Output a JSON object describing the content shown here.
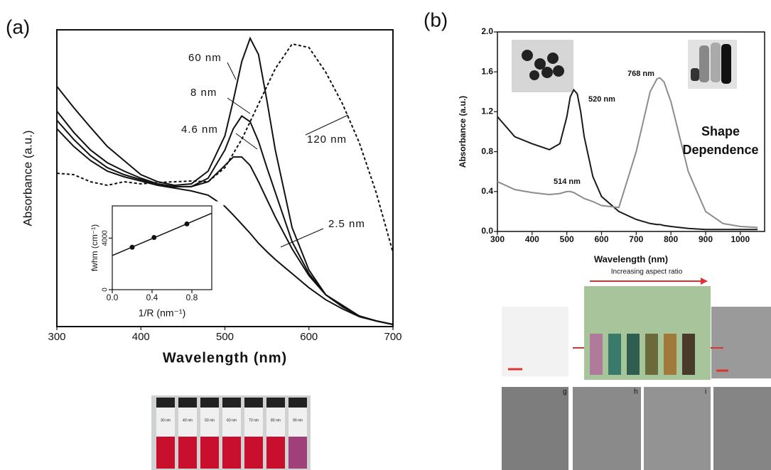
{
  "panel_labels": [
    "(a)",
    "(b)"
  ],
  "chart_data": [
    {
      "type": "line",
      "xlabel": "Wavelength (nm)",
      "ylabel": "Absorbance (a.u.)",
      "x": [
        300,
        320,
        340,
        360,
        380,
        400,
        420,
        440,
        460,
        480,
        500,
        510,
        520,
        530,
        540,
        550,
        560,
        580,
        600,
        620,
        640,
        660,
        680,
        700
      ],
      "xlim": [
        300,
        700
      ],
      "xticks": [
        300,
        400,
        500,
        600,
        700
      ],
      "ylim": [
        0,
        420
      ],
      "series": [
        {
          "name": "60 nm",
          "color": "#111111",
          "values": [
            340,
            310,
            282,
            255,
            235,
            215,
            205,
            200,
            202,
            220,
            270,
            320,
            375,
            408,
            385,
            320,
            250,
            140,
            80,
            45,
            30,
            15,
            8,
            3
          ]
        },
        {
          "name": "8 nm",
          "color": "#111111",
          "values": [
            305,
            275,
            250,
            232,
            220,
            210,
            202,
            198,
            198,
            210,
            250,
            280,
            298,
            290,
            262,
            225,
            190,
            120,
            75,
            45,
            28,
            15,
            8,
            3
          ]
        },
        {
          "name": "4.6 nm",
          "color": "#111111",
          "values": [
            292,
            265,
            242,
            225,
            215,
            208,
            202,
            198,
            198,
            205,
            228,
            240,
            240,
            228,
            205,
            180,
            155,
            110,
            72,
            45,
            28,
            15,
            8,
            3
          ]
        },
        {
          "name": "2.5 nm",
          "color": "#111111",
          "values": [
            280,
            255,
            235,
            220,
            212,
            206,
            200,
            196,
            192,
            186,
            170,
            158,
            145,
            132,
            118,
            106,
            95,
            75,
            55,
            38,
            25,
            14,
            8,
            3
          ]
        },
        {
          "name": "120 nm",
          "color": "#111111",
          "dash": true,
          "values": [
            217,
            215,
            205,
            200,
            205,
            202,
            204,
            205,
            206,
            205,
            225,
            245,
            265,
            290,
            315,
            340,
            365,
            400,
            395,
            360,
            315,
            260,
            190,
            105
          ]
        }
      ]
    },
    {
      "type": "line",
      "xlabel": "1/R (nm⁻¹)",
      "ylabel": "fwhm (cm⁻¹)",
      "x": [
        0.2,
        0.42,
        0.75
      ],
      "xlim": [
        0,
        1
      ],
      "xticks": [
        {
          "value": 0,
          "label": "0.0"
        },
        0.4,
        0.8
      ],
      "ylim": [
        0,
        6500
      ],
      "yticks": [
        0,
        4000
      ],
      "series": [
        {
          "color": "#111111",
          "markers": true,
          "fit": true,
          "values": [
            3290,
            4050,
            5100
          ]
        }
      ]
    },
    {
      "type": "line",
      "xlabel": "Wavelength (nm)",
      "ylabel": "Absorbance (a.u.)",
      "x": [
        300,
        350,
        400,
        450,
        480,
        500,
        510,
        520,
        530,
        540,
        550,
        575,
        600,
        650,
        700,
        740,
        760,
        768,
        780,
        800,
        825,
        850,
        900,
        950,
        1000,
        1050
      ],
      "xlim": [
        300,
        1070
      ],
      "xticks": [
        300,
        400,
        500,
        600,
        700,
        800,
        900,
        1000
      ],
      "ylim": [
        0,
        2
      ],
      "yticks": [
        {
          "value": 0,
          "label": "0.0"
        },
        0.4,
        0.8,
        1.2,
        1.6,
        {
          "value": 2,
          "label": "2.0"
        }
      ],
      "series": [
        {
          "color": "#1a1a1a",
          "values": [
            1.15,
            0.95,
            0.88,
            0.82,
            0.88,
            1.15,
            1.35,
            1.42,
            1.38,
            1.2,
            0.95,
            0.55,
            0.35,
            0.2,
            0.12,
            0.08,
            0.07,
            0.07,
            0.06,
            0.05,
            0.04,
            0.03,
            0.02,
            0.02,
            0.02,
            0.02
          ]
        },
        {
          "color": "#8c8c8c",
          "values": [
            0.5,
            0.42,
            0.39,
            0.37,
            0.38,
            0.4,
            0.4,
            0.39,
            0.37,
            0.35,
            0.33,
            0.3,
            0.26,
            0.24,
            0.8,
            1.4,
            1.53,
            1.54,
            1.5,
            1.3,
            0.95,
            0.6,
            0.2,
            0.08,
            0.05,
            0.04
          ]
        }
      ],
      "annotations": [
        {
          "text": "520 nm",
          "color": "#1a1a1a"
        },
        {
          "text": "768 nm",
          "color": "#8c8c8c"
        },
        {
          "text": "514 nm",
          "color": "#8c8c8c"
        },
        {
          "text": "Shape",
          "color": "#333333"
        },
        {
          "text": "Dependence",
          "color": "#333333"
        }
      ]
    }
  ],
  "photos": {
    "vial_labels": [
      "30 nm",
      "40 nm",
      "50 nm",
      "60 nm",
      "70 nm",
      "80 nm",
      "90 nm"
    ],
    "aspect_ratio_caption": "Increasing aspect ratio",
    "tem_labels": [
      "g",
      "h",
      "i"
    ]
  }
}
